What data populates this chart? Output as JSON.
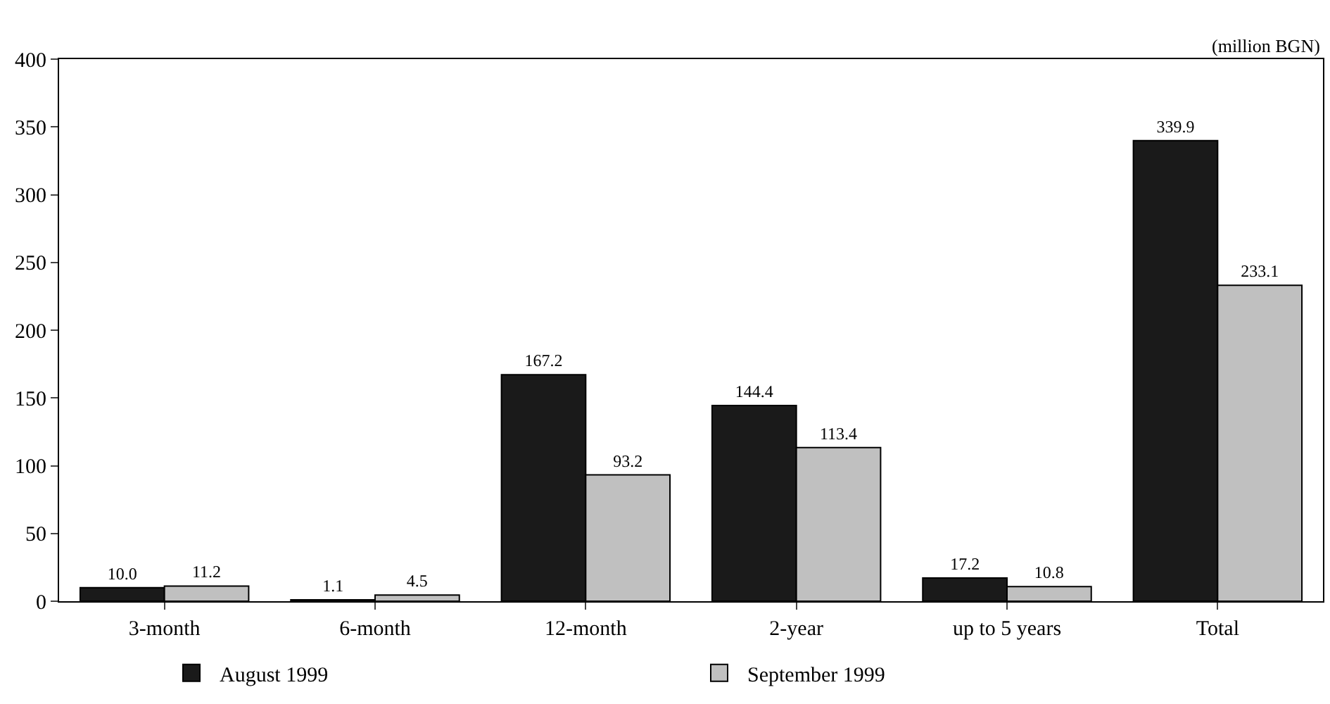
{
  "chart_data": {
    "type": "bar",
    "categories": [
      "3-month",
      "6-month",
      "12-month",
      "2-year",
      "up to 5 years",
      "Total"
    ],
    "series": [
      {
        "name": "August 1999",
        "color": "#1a1a1a",
        "values": [
          10.0,
          1.1,
          167.2,
          144.4,
          17.2,
          339.9
        ],
        "value_labels": [
          "10.0",
          "1.1",
          "167.2",
          "144.4",
          "17.2",
          "339.9"
        ]
      },
      {
        "name": "September 1999",
        "color": "#c0c0c0",
        "values": [
          11.2,
          4.5,
          93.2,
          113.4,
          10.8,
          233.1
        ],
        "value_labels": [
          "11.2",
          "4.5",
          "93.2",
          "113.4",
          "10.8",
          "233.1"
        ]
      }
    ],
    "ylim": [
      0,
      400
    ],
    "yticks": [
      0,
      50,
      100,
      150,
      200,
      250,
      300,
      350,
      400
    ],
    "annotations": [
      "(million BGN)"
    ],
    "legend": "bottom"
  }
}
